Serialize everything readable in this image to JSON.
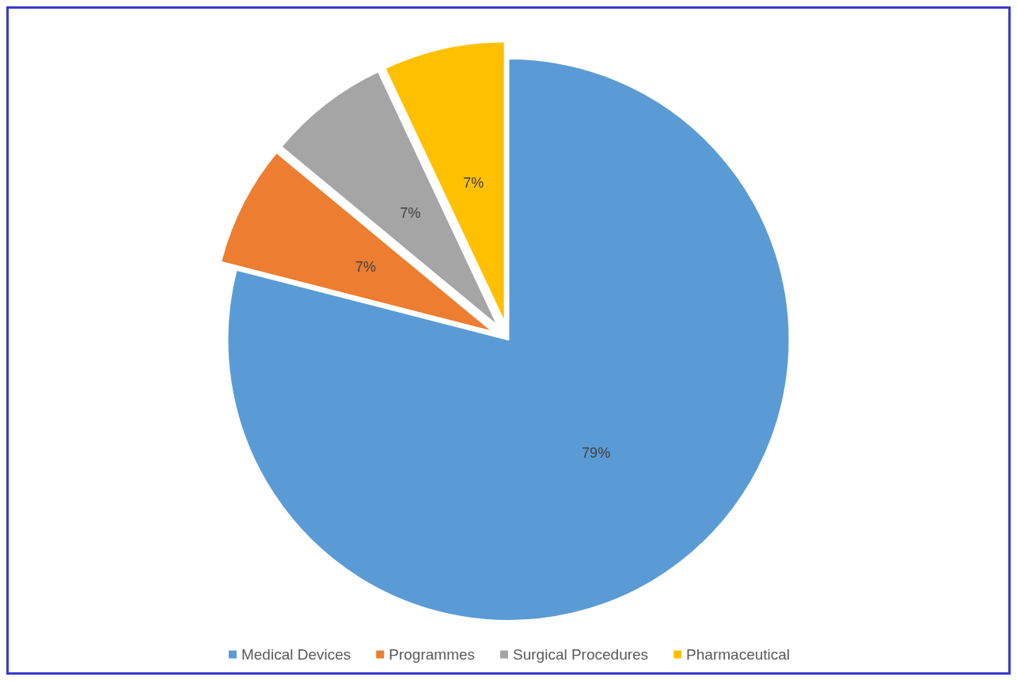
{
  "chart_data": {
    "type": "pie",
    "categories": [
      "Medical Devices",
      "Programmes",
      "Surgical Procedures",
      "Pharmaceutical"
    ],
    "values": [
      79,
      7,
      7,
      7
    ],
    "colors": [
      "#5b9bd5",
      "#ed7d31",
      "#a5a5a5",
      "#ffc000"
    ],
    "value_labels": [
      "79%",
      "7%",
      "7%",
      "7%"
    ],
    "legend": "bottom"
  }
}
